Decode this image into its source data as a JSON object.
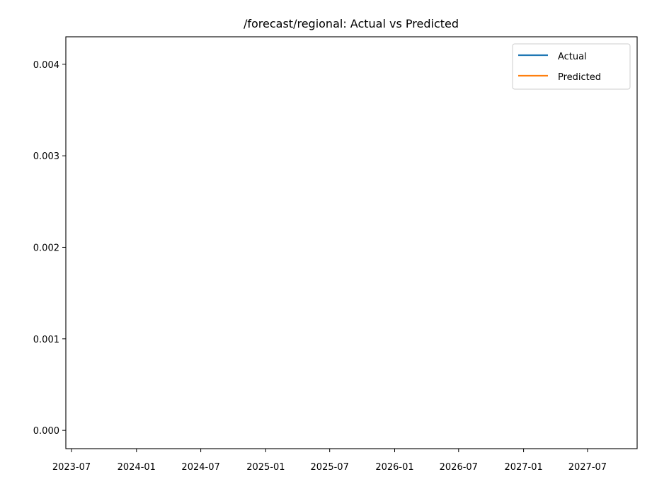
{
  "chart_data": {
    "type": "line",
    "title": "/forecast/regional: Actual vs Predicted",
    "xlabel": "",
    "ylabel": "",
    "x_ticks": [
      "2023-07",
      "2024-01",
      "2024-07",
      "2025-01",
      "2025-07",
      "2026-01",
      "2026-07",
      "2027-01",
      "2027-07"
    ],
    "y_ticks": [
      "0.000",
      "0.001",
      "0.002",
      "0.003",
      "0.004"
    ],
    "ylim": [
      -0.0002,
      0.0043
    ],
    "grid": false,
    "legend_position": "top-right",
    "series": [
      {
        "name": "Actual",
        "color": "#1f77b4",
        "x": [],
        "values": []
      },
      {
        "name": "Predicted",
        "color": "#ff7f0e",
        "x": [],
        "values": []
      }
    ]
  }
}
